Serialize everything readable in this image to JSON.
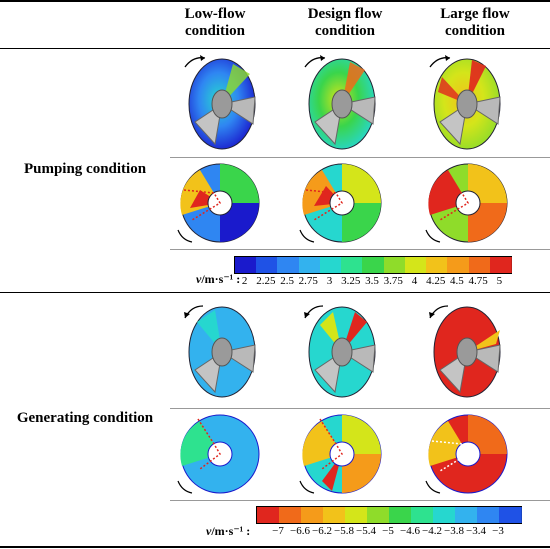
{
  "columns": [
    {
      "line1": "Low-flow",
      "line2": "condition"
    },
    {
      "line1": "Design flow",
      "line2": "condition"
    },
    {
      "line1": "Large flow",
      "line2": "condition"
    }
  ],
  "rows": [
    {
      "label": "Pumping condition"
    },
    {
      "label": "Generating condition"
    }
  ],
  "legend_pumping": {
    "label_prefix": "v",
    "label_suffix": "/m·s⁻¹ :",
    "ticks": [
      "2",
      "2.25",
      "2.5",
      "2.75",
      "3",
      "3.25",
      "3.5",
      "3.75",
      "4",
      "4.25",
      "4.5",
      "4.75",
      "5"
    ],
    "colors": [
      "#1a1acc",
      "#1f52e6",
      "#2f86f2",
      "#33b2ee",
      "#26d7cf",
      "#2ee28f",
      "#3ad54b",
      "#8fdc2a",
      "#d4e51a",
      "#f2c21a",
      "#f59b1a",
      "#f06a1a",
      "#e0261e"
    ]
  },
  "legend_generating": {
    "label_prefix": "v",
    "label_suffix": "/m·s⁻¹ :",
    "ticks": [
      "−7",
      "−6.6",
      "−6.2",
      "−5.8",
      "−5.4",
      "−5",
      "−4.6",
      "−4.2",
      "−3.8",
      "−3.4",
      "−3"
    ],
    "colors": [
      "#e0261e",
      "#f06a1a",
      "#f59b1a",
      "#f2c21a",
      "#d4e51a",
      "#8fdc2a",
      "#3ad54b",
      "#2ee28f",
      "#26d7cf",
      "#33b2ee",
      "#2f86f2",
      "#1f52e6"
    ]
  }
}
